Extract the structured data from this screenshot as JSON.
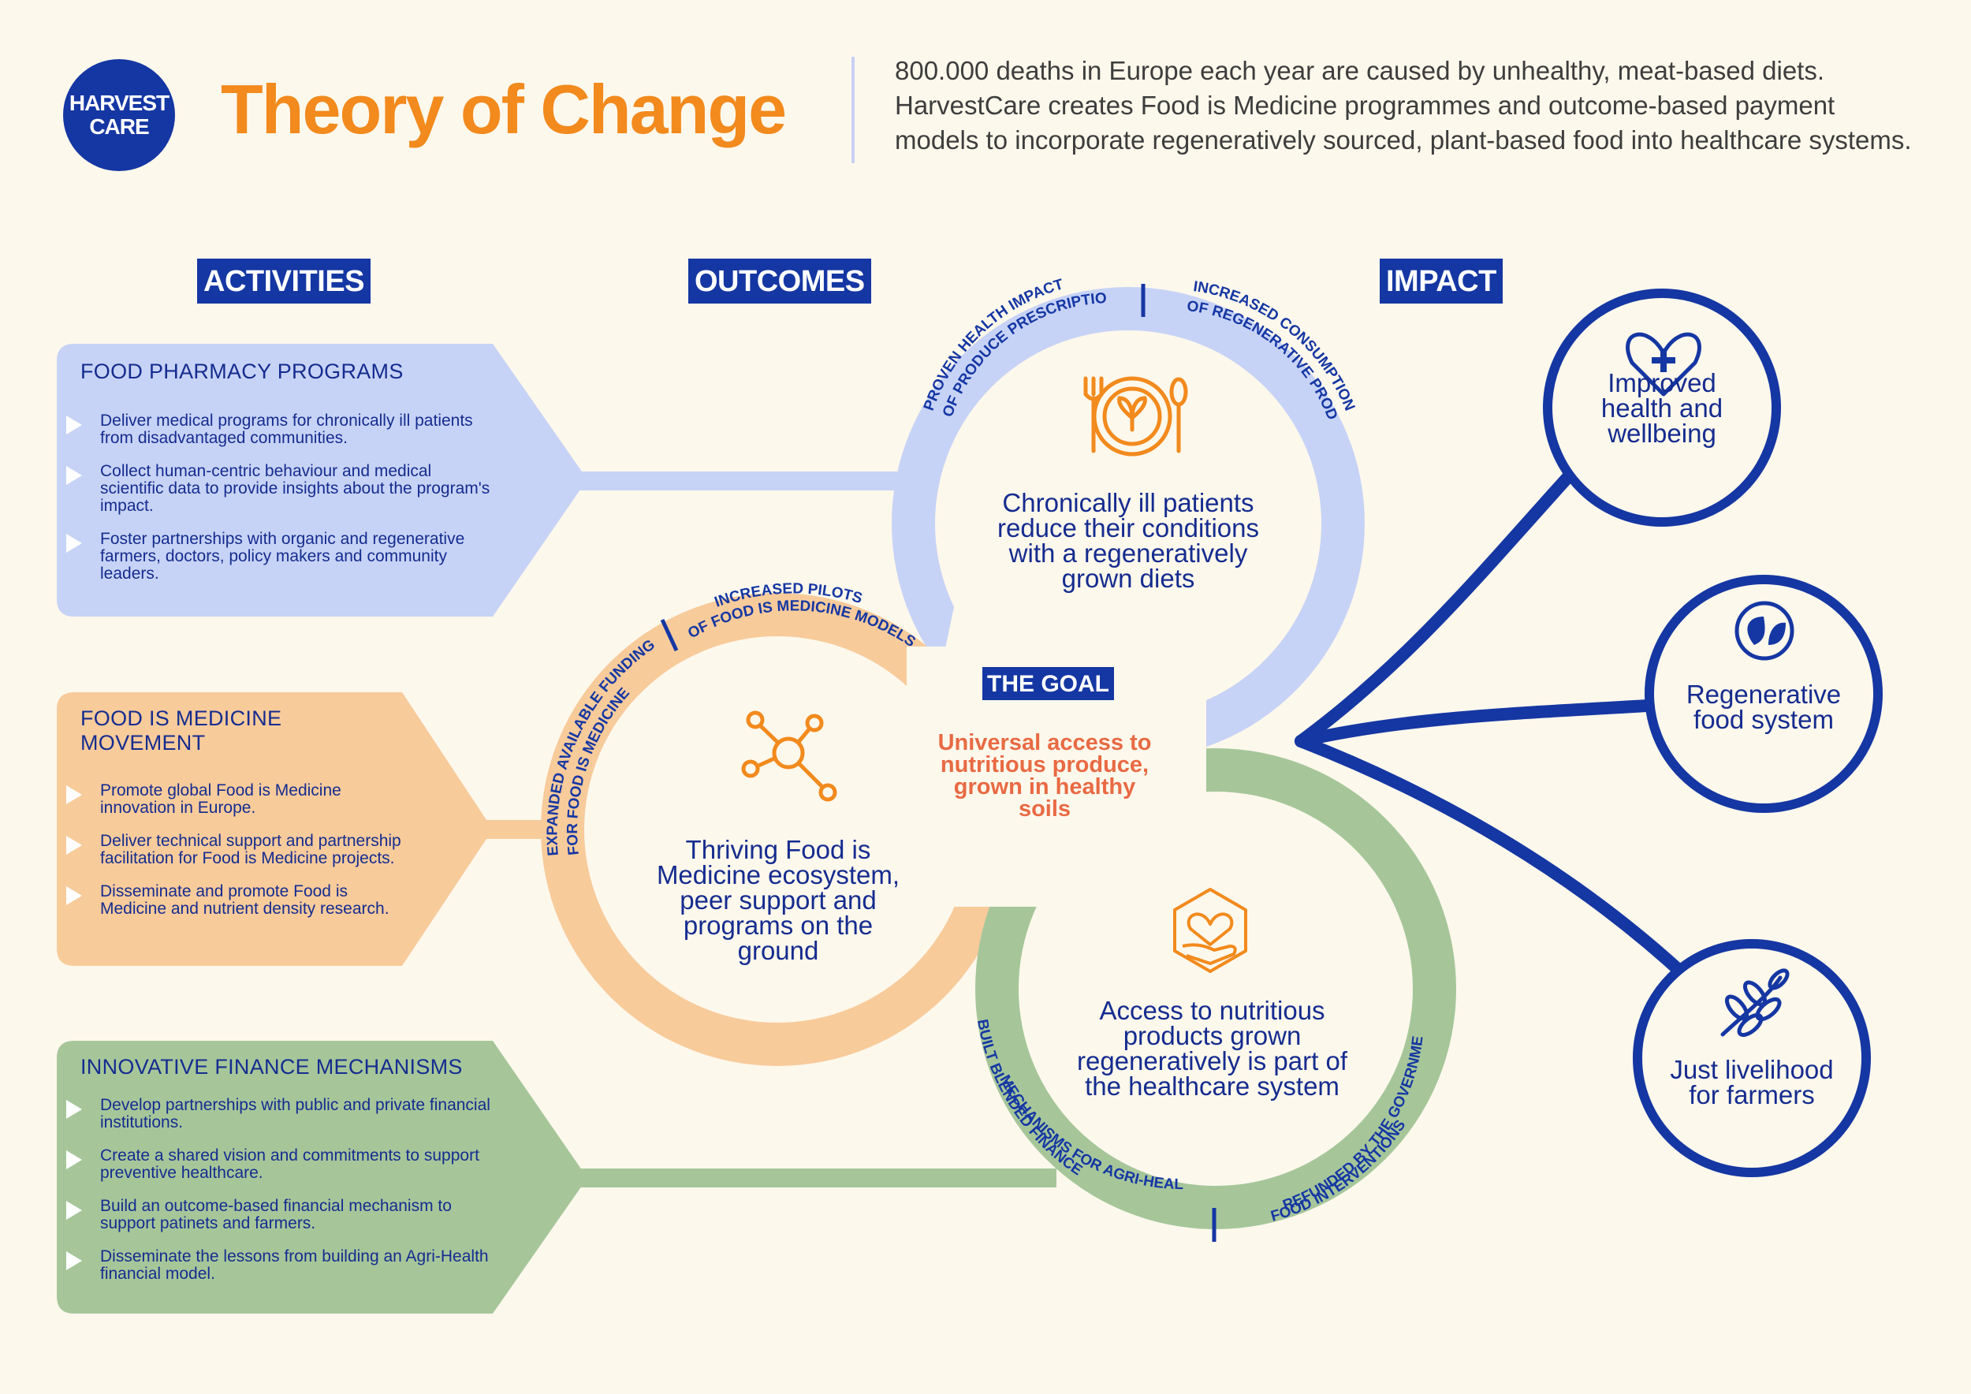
{
  "header": {
    "logo_line1": "HARVEST",
    "logo_line2": "CARE",
    "title": "Theory of Change",
    "intro": "800.000 deaths in Europe each year are caused by unhealthy, meat-based diets. HarvestCare creates Food is Medicine programmes and outcome-based payment models to incorporate regeneratively sourced, plant-based food into healthcare systems."
  },
  "columns": {
    "activities": "ACTIVITIES",
    "outcomes": "OUTCOMES",
    "impact": "IMPACT"
  },
  "activities": [
    {
      "title": "FOOD PHARMACY PROGRAMS",
      "items": [
        "Deliver medical programs for chronically ill patients from disadvantaged communities.",
        "Collect human-centric behaviour and medical scientific data to provide insights about the program's impact.",
        "Foster partnerships with organic and regenerative farmers, doctors, policy makers and community leaders."
      ]
    },
    {
      "title": "FOOD IS MEDICINE MOVEMENT",
      "items": [
        "Promote global Food is Medicine innovation in Europe.",
        "Deliver technical support and partnership facilitation for Food is Medicine projects.",
        "Disseminate and promote Food is Medicine and nutrient density research."
      ]
    },
    {
      "title": "INNOVATIVE FINANCE MECHANISMS",
      "items": [
        "Develop partnerships with public and private financial institutions.",
        "Create a shared vision and commitments to support preventive healthcare.",
        "Build an outcome-based financial mechanism to support patinets and farmers.",
        "Disseminate the lessons from building an Agri-Health financial model."
      ]
    }
  ],
  "outcomes": {
    "blue": {
      "text": "Chronically ill patients reduce their conditions with a regeneratively grown diets",
      "arc_left_line1": "PROVEN HEALTH IMPACT",
      "arc_left_line2": "OF PRODUCE PRESCRIPTIONS",
      "arc_right_line1": "INCREASED CONSUMPTION",
      "arc_right_line2": "OF REGENERATIVE PRODUCE",
      "icon": "plate-fork-spoon-icon"
    },
    "orange": {
      "text": "Thriving Food is Medicine ecosystem, peer support and programs on the ground",
      "arc_left_line1": "EXPANDED AVAILABLE FUNDING",
      "arc_left_line2": "FOR FOOD IS MEDICINE",
      "arc_right_line1": "INCREASED PILOTS",
      "arc_right_line2": "OF FOOD IS MEDICINE MODELS",
      "icon": "network-icon"
    },
    "green": {
      "text": "Access to nutritious products grown regeneratively is part of the healthcare system",
      "arc_left_line1": "BUILT BLENDED FINANCE",
      "arc_left_line2": "MECHANISMS FOR AGRI-HEALTH MODELS",
      "arc_right_line1": "FOOD INTERVENTIONS",
      "arc_right_line2": "REFUNDED BY THE GOVERNMENT",
      "icon": "hand-heart-icon"
    }
  },
  "goal": {
    "heading": "THE GOAL",
    "text": "Universal access to nutritious produce, grown in healthy soils"
  },
  "impact": [
    {
      "text": "Improved health and wellbeing",
      "icon": "heart-plus-icon"
    },
    {
      "text": "Regenerative food system",
      "icon": "leaf-icon"
    },
    {
      "text": "Just livelihood for farmers",
      "icon": "wheat-icon"
    }
  ],
  "colors": {
    "navy": "#1537a3",
    "orange_title": "#f28a1d",
    "blue_card": "#c7d3f6",
    "orange_card": "#f8cb9b",
    "green_card": "#a6c69a",
    "background": "#fdf8ec",
    "goal_text": "#e86a43"
  }
}
